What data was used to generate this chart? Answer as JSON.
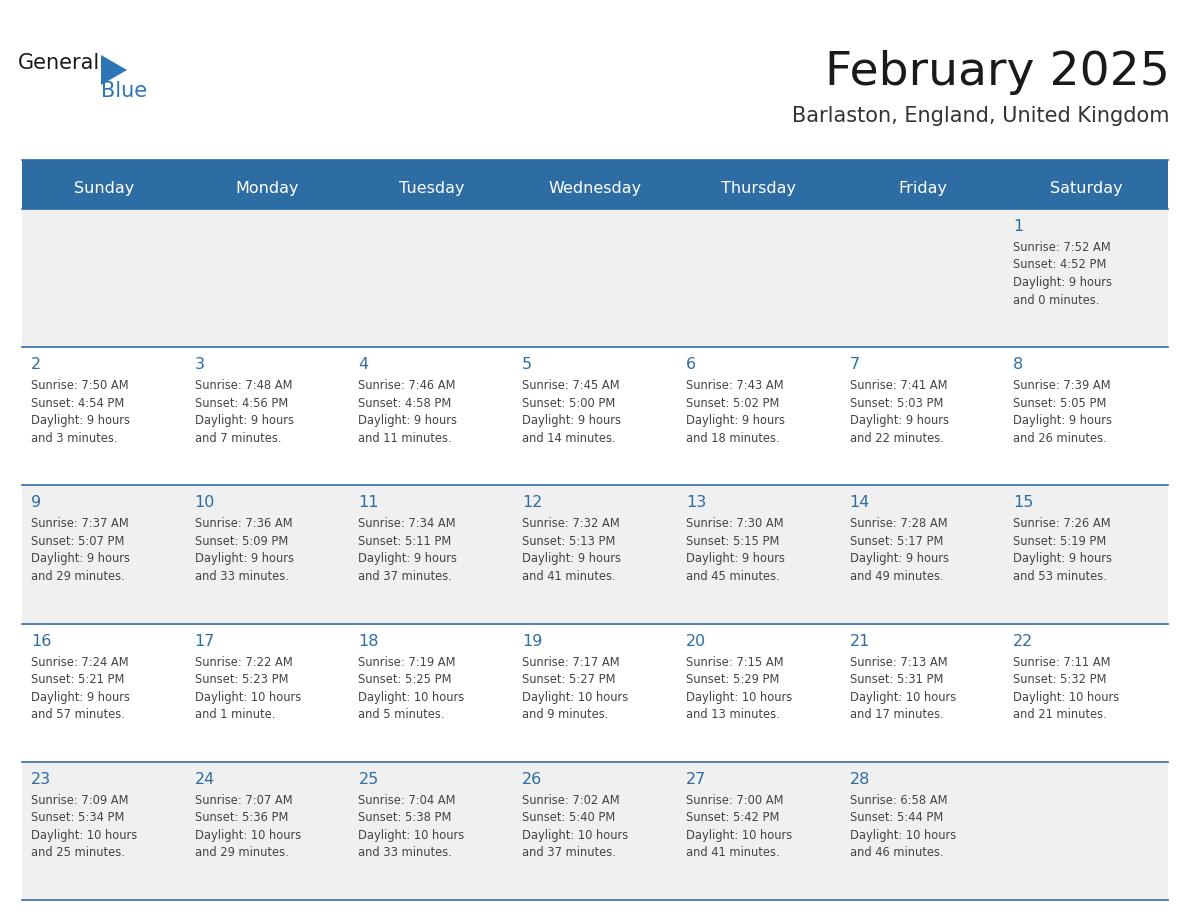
{
  "title": "February 2025",
  "subtitle": "Barlaston, England, United Kingdom",
  "header_bg": "#2E6DA4",
  "header_text_color": "#FFFFFF",
  "cell_bg_even": "#F0F0F0",
  "cell_bg_odd": "#FFFFFF",
  "day_number_color": "#2E6DA4",
  "info_text_color": "#444444",
  "grid_line_color": "#2E6DA4",
  "days_of_week": [
    "Sunday",
    "Monday",
    "Tuesday",
    "Wednesday",
    "Thursday",
    "Friday",
    "Saturday"
  ],
  "weeks": [
    [
      {
        "day": null,
        "info": ""
      },
      {
        "day": null,
        "info": ""
      },
      {
        "day": null,
        "info": ""
      },
      {
        "day": null,
        "info": ""
      },
      {
        "day": null,
        "info": ""
      },
      {
        "day": null,
        "info": ""
      },
      {
        "day": 1,
        "info": "Sunrise: 7:52 AM\nSunset: 4:52 PM\nDaylight: 9 hours\nand 0 minutes."
      }
    ],
    [
      {
        "day": 2,
        "info": "Sunrise: 7:50 AM\nSunset: 4:54 PM\nDaylight: 9 hours\nand 3 minutes."
      },
      {
        "day": 3,
        "info": "Sunrise: 7:48 AM\nSunset: 4:56 PM\nDaylight: 9 hours\nand 7 minutes."
      },
      {
        "day": 4,
        "info": "Sunrise: 7:46 AM\nSunset: 4:58 PM\nDaylight: 9 hours\nand 11 minutes."
      },
      {
        "day": 5,
        "info": "Sunrise: 7:45 AM\nSunset: 5:00 PM\nDaylight: 9 hours\nand 14 minutes."
      },
      {
        "day": 6,
        "info": "Sunrise: 7:43 AM\nSunset: 5:02 PM\nDaylight: 9 hours\nand 18 minutes."
      },
      {
        "day": 7,
        "info": "Sunrise: 7:41 AM\nSunset: 5:03 PM\nDaylight: 9 hours\nand 22 minutes."
      },
      {
        "day": 8,
        "info": "Sunrise: 7:39 AM\nSunset: 5:05 PM\nDaylight: 9 hours\nand 26 minutes."
      }
    ],
    [
      {
        "day": 9,
        "info": "Sunrise: 7:37 AM\nSunset: 5:07 PM\nDaylight: 9 hours\nand 29 minutes."
      },
      {
        "day": 10,
        "info": "Sunrise: 7:36 AM\nSunset: 5:09 PM\nDaylight: 9 hours\nand 33 minutes."
      },
      {
        "day": 11,
        "info": "Sunrise: 7:34 AM\nSunset: 5:11 PM\nDaylight: 9 hours\nand 37 minutes."
      },
      {
        "day": 12,
        "info": "Sunrise: 7:32 AM\nSunset: 5:13 PM\nDaylight: 9 hours\nand 41 minutes."
      },
      {
        "day": 13,
        "info": "Sunrise: 7:30 AM\nSunset: 5:15 PM\nDaylight: 9 hours\nand 45 minutes."
      },
      {
        "day": 14,
        "info": "Sunrise: 7:28 AM\nSunset: 5:17 PM\nDaylight: 9 hours\nand 49 minutes."
      },
      {
        "day": 15,
        "info": "Sunrise: 7:26 AM\nSunset: 5:19 PM\nDaylight: 9 hours\nand 53 minutes."
      }
    ],
    [
      {
        "day": 16,
        "info": "Sunrise: 7:24 AM\nSunset: 5:21 PM\nDaylight: 9 hours\nand 57 minutes."
      },
      {
        "day": 17,
        "info": "Sunrise: 7:22 AM\nSunset: 5:23 PM\nDaylight: 10 hours\nand 1 minute."
      },
      {
        "day": 18,
        "info": "Sunrise: 7:19 AM\nSunset: 5:25 PM\nDaylight: 10 hours\nand 5 minutes."
      },
      {
        "day": 19,
        "info": "Sunrise: 7:17 AM\nSunset: 5:27 PM\nDaylight: 10 hours\nand 9 minutes."
      },
      {
        "day": 20,
        "info": "Sunrise: 7:15 AM\nSunset: 5:29 PM\nDaylight: 10 hours\nand 13 minutes."
      },
      {
        "day": 21,
        "info": "Sunrise: 7:13 AM\nSunset: 5:31 PM\nDaylight: 10 hours\nand 17 minutes."
      },
      {
        "day": 22,
        "info": "Sunrise: 7:11 AM\nSunset: 5:32 PM\nDaylight: 10 hours\nand 21 minutes."
      }
    ],
    [
      {
        "day": 23,
        "info": "Sunrise: 7:09 AM\nSunset: 5:34 PM\nDaylight: 10 hours\nand 25 minutes."
      },
      {
        "day": 24,
        "info": "Sunrise: 7:07 AM\nSunset: 5:36 PM\nDaylight: 10 hours\nand 29 minutes."
      },
      {
        "day": 25,
        "info": "Sunrise: 7:04 AM\nSunset: 5:38 PM\nDaylight: 10 hours\nand 33 minutes."
      },
      {
        "day": 26,
        "info": "Sunrise: 7:02 AM\nSunset: 5:40 PM\nDaylight: 10 hours\nand 37 minutes."
      },
      {
        "day": 27,
        "info": "Sunrise: 7:00 AM\nSunset: 5:42 PM\nDaylight: 10 hours\nand 41 minutes."
      },
      {
        "day": 28,
        "info": "Sunrise: 6:58 AM\nSunset: 5:44 PM\nDaylight: 10 hours\nand 46 minutes."
      },
      {
        "day": null,
        "info": ""
      }
    ]
  ],
  "logo_text_general": "General",
  "logo_text_blue": "Blue",
  "logo_triangle_color": "#2E75B6",
  "background_color": "#FFFFFF"
}
